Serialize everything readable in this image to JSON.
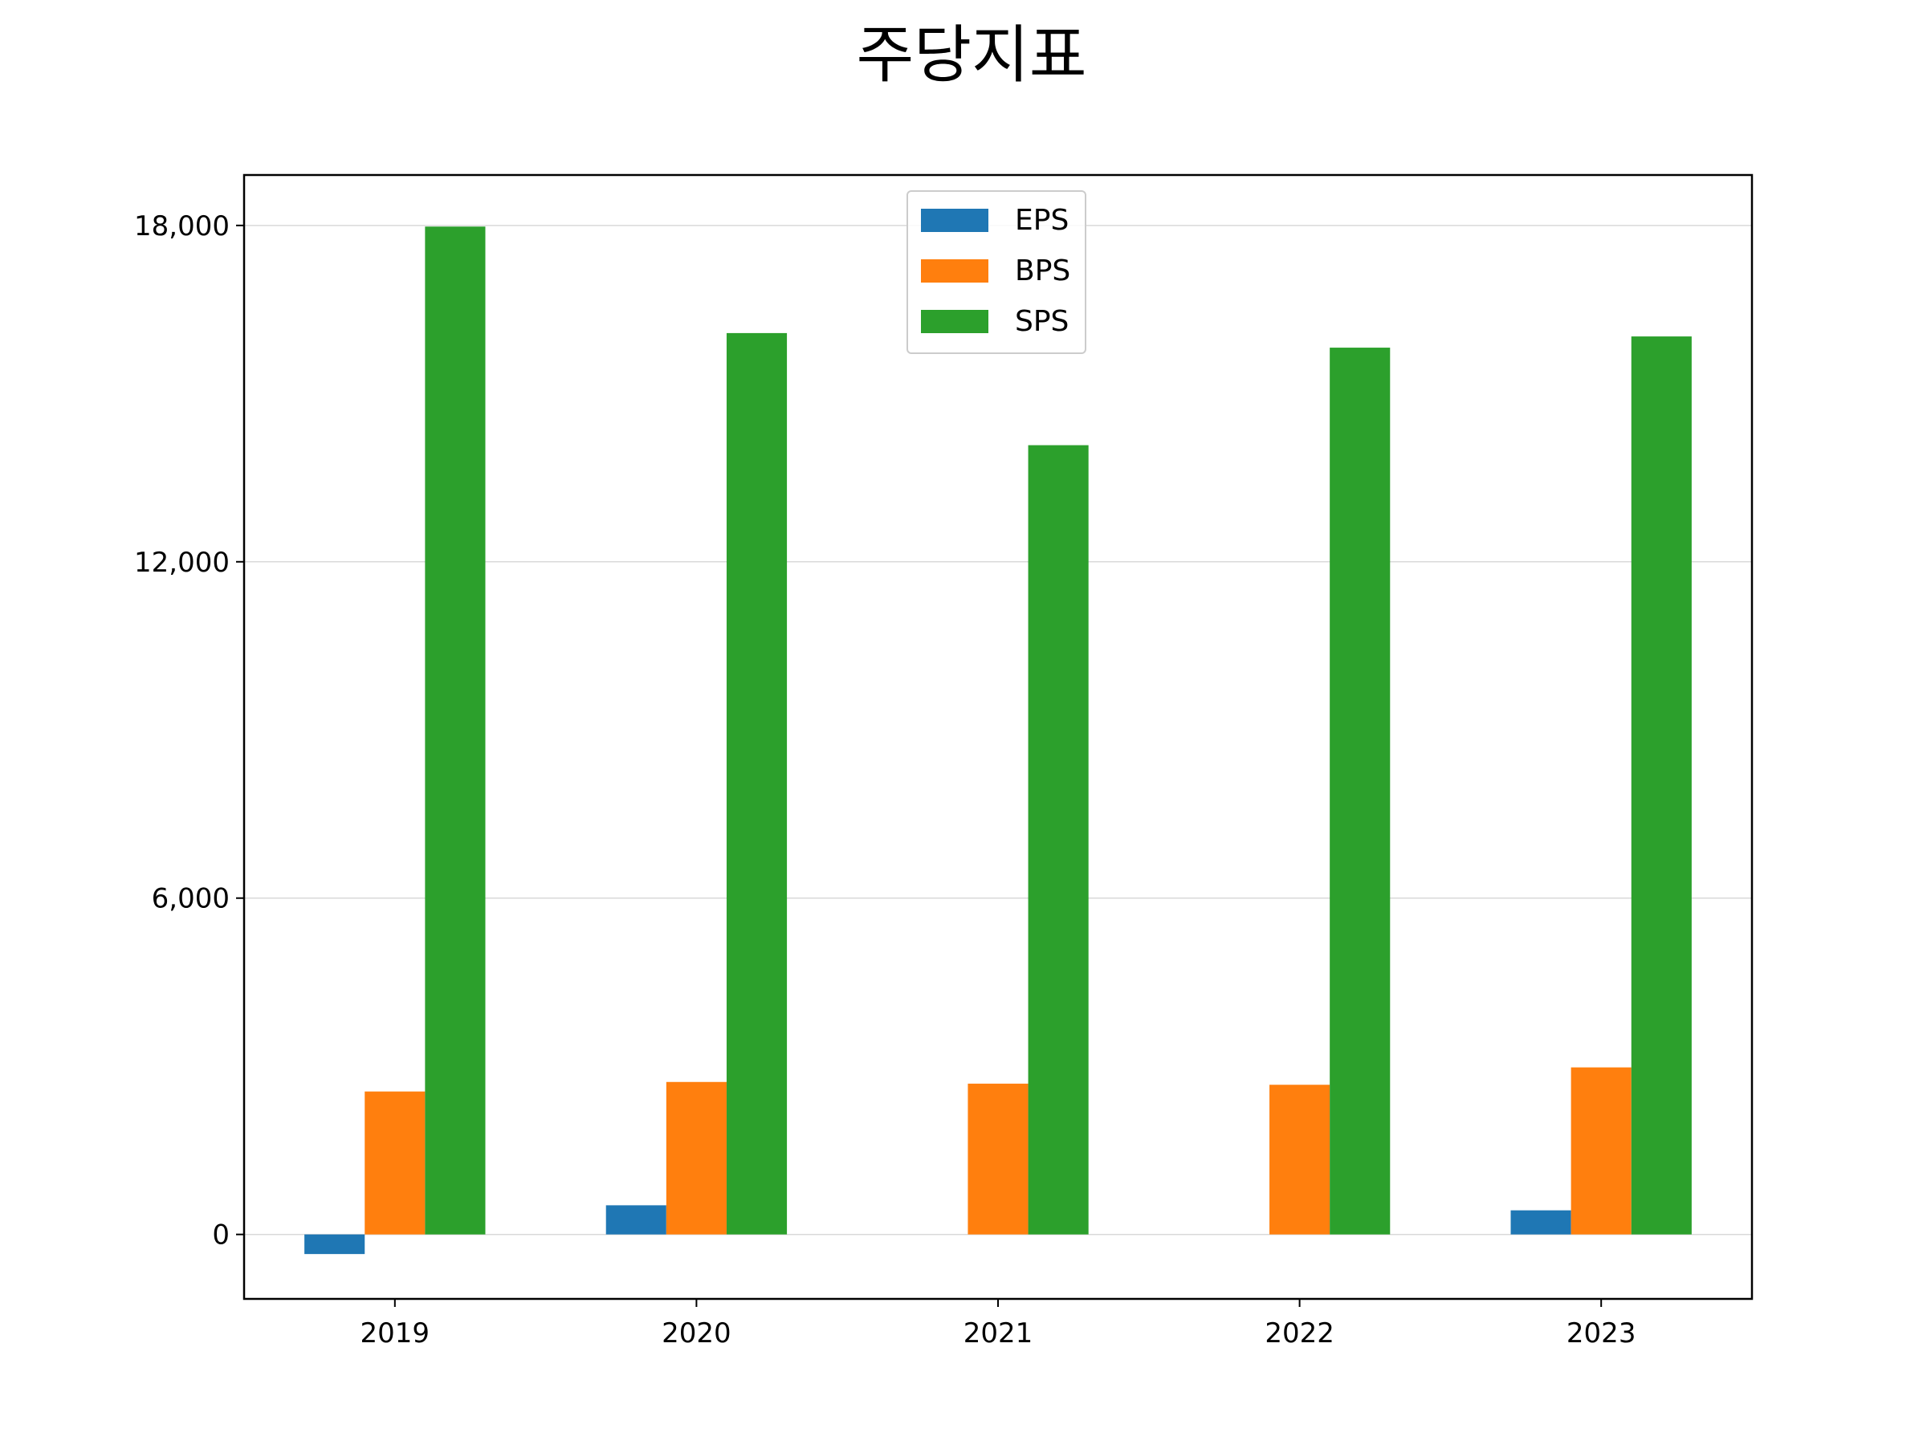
{
  "chart_data": {
    "type": "bar",
    "title": "주당지표",
    "xlabel": "",
    "ylabel": "",
    "categories": [
      "2019",
      "2020",
      "2021",
      "2022",
      "2023"
    ],
    "series": [
      {
        "name": "EPS",
        "color": "#1f77b4",
        "values": [
          -350,
          520,
          0,
          0,
          430
        ]
      },
      {
        "name": "BPS",
        "color": "#ff7f0e",
        "values": [
          2550,
          2720,
          2690,
          2670,
          2980
        ]
      },
      {
        "name": "SPS",
        "color": "#2ca02c",
        "values": [
          17980,
          16080,
          14080,
          15820,
          16020
        ]
      }
    ],
    "ylim": [
      -1150,
      18900
    ],
    "yticks": [
      0,
      6000,
      12000,
      18000
    ],
    "ytick_labels": [
      "0",
      "6,000",
      "12,000",
      "18,000"
    ],
    "grid": "horizontal",
    "legend_position": "top-center"
  }
}
